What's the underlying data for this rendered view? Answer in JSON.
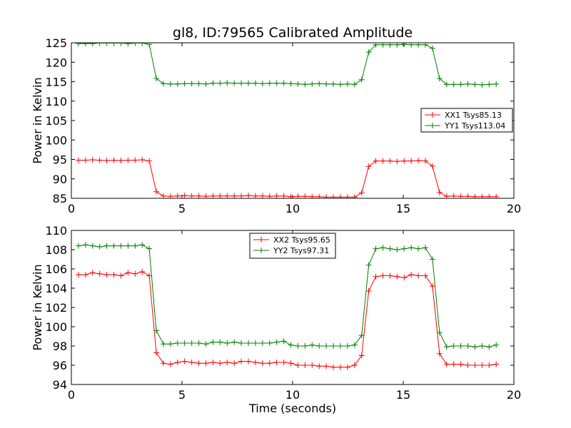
{
  "figure": {
    "title": "gl8, ID:79565 Calibrated Amplitude"
  },
  "chart_data": [
    {
      "type": "line",
      "title": "gl8, ID:79565 Calibrated Amplitude",
      "xlabel": "",
      "ylabel": "Power in Kelvin",
      "xlim": [
        0,
        20
      ],
      "ylim": [
        85,
        125
      ],
      "xticks": [
        "0",
        "5",
        "10",
        "15",
        "20"
      ],
      "yticks": [
        "85",
        "90",
        "95",
        "100",
        "105",
        "110",
        "115",
        "120",
        "125"
      ],
      "legend_position": "center-right",
      "x": [
        0.32,
        0.64,
        0.96,
        1.28,
        1.6,
        1.92,
        2.24,
        2.56,
        2.88,
        3.2,
        3.52,
        3.84,
        4.16,
        4.48,
        4.8,
        5.12,
        5.44,
        5.76,
        6.08,
        6.4,
        6.72,
        7.04,
        7.36,
        7.68,
        8.0,
        8.32,
        8.64,
        8.96,
        9.28,
        9.6,
        9.92,
        10.24,
        10.56,
        10.88,
        11.2,
        11.52,
        11.84,
        12.16,
        12.48,
        12.8,
        13.12,
        13.44,
        13.76,
        14.08,
        14.4,
        14.72,
        15.04,
        15.36,
        15.68,
        16.0,
        16.32,
        16.64,
        16.96,
        17.28,
        17.6,
        17.92,
        18.24,
        18.56,
        18.88,
        19.2
      ],
      "series": [
        {
          "name": "XX1 Tsys85.13",
          "color": "#ff0000",
          "values": [
            94.8,
            94.8,
            94.9,
            94.8,
            94.7,
            94.8,
            94.7,
            94.8,
            94.8,
            94.9,
            94.6,
            86.7,
            85.6,
            85.5,
            85.6,
            85.7,
            85.6,
            85.6,
            85.5,
            85.6,
            85.6,
            85.6,
            85.6,
            85.6,
            85.7,
            85.6,
            85.6,
            85.5,
            85.6,
            85.6,
            85.4,
            85.5,
            85.5,
            85.4,
            85.4,
            85.3,
            85.3,
            85.3,
            85.3,
            85.3,
            86.4,
            93.2,
            94.6,
            94.6,
            94.6,
            94.5,
            94.6,
            94.6,
            94.7,
            94.6,
            93.3,
            86.5,
            85.5,
            85.6,
            85.5,
            85.5,
            85.4,
            85.4,
            85.4,
            85.4
          ]
        },
        {
          "name": "YY1 Tsys113.04",
          "color": "#008000",
          "values": [
            124.8,
            124.8,
            124.8,
            124.9,
            124.9,
            124.9,
            124.9,
            124.8,
            124.9,
            124.9,
            124.6,
            115.8,
            114.5,
            114.4,
            114.4,
            114.5,
            114.5,
            114.5,
            114.4,
            114.6,
            114.6,
            114.7,
            114.6,
            114.6,
            114.6,
            114.6,
            114.5,
            114.6,
            114.6,
            114.6,
            114.5,
            114.4,
            114.3,
            114.4,
            114.5,
            114.4,
            114.4,
            114.3,
            114.4,
            114.3,
            115.5,
            122.6,
            124.5,
            124.5,
            124.5,
            124.5,
            124.6,
            124.5,
            124.5,
            124.5,
            123.6,
            115.8,
            114.3,
            114.3,
            114.3,
            114.4,
            114.3,
            114.2,
            114.3,
            114.4
          ]
        }
      ]
    },
    {
      "type": "line",
      "title": "",
      "xlabel": "Time (seconds)",
      "ylabel": "Power in Kelvin",
      "xlim": [
        0,
        20
      ],
      "ylim": [
        94,
        110
      ],
      "xticks": [
        "0",
        "5",
        "10",
        "15",
        "20"
      ],
      "yticks": [
        "94",
        "96",
        "98",
        "100",
        "102",
        "104",
        "106",
        "108",
        "110"
      ],
      "legend_position": "upper-center",
      "x": [
        0.32,
        0.64,
        0.96,
        1.28,
        1.6,
        1.92,
        2.24,
        2.56,
        2.88,
        3.2,
        3.52,
        3.84,
        4.16,
        4.48,
        4.8,
        5.12,
        5.44,
        5.76,
        6.08,
        6.4,
        6.72,
        7.04,
        7.36,
        7.68,
        8.0,
        8.32,
        8.64,
        8.96,
        9.28,
        9.6,
        9.92,
        10.24,
        10.56,
        10.88,
        11.2,
        11.52,
        11.84,
        12.16,
        12.48,
        12.8,
        13.12,
        13.44,
        13.76,
        14.08,
        14.4,
        14.72,
        15.04,
        15.36,
        15.68,
        16.0,
        16.32,
        16.64,
        16.96,
        17.28,
        17.6,
        17.92,
        18.24,
        18.56,
        18.88,
        19.2
      ],
      "series": [
        {
          "name": "XX2 Tsys95.65",
          "color": "#ff0000",
          "values": [
            105.4,
            105.4,
            105.6,
            105.5,
            105.4,
            105.4,
            105.3,
            105.6,
            105.5,
            105.7,
            105.3,
            97.3,
            96.2,
            96.1,
            96.3,
            96.4,
            96.3,
            96.2,
            96.2,
            96.3,
            96.2,
            96.3,
            96.2,
            96.4,
            96.4,
            96.3,
            96.2,
            96.2,
            96.3,
            96.3,
            96.2,
            96.0,
            96.0,
            96.0,
            95.9,
            95.9,
            95.8,
            95.8,
            95.8,
            96.0,
            97.0,
            103.7,
            105.2,
            105.3,
            105.3,
            105.2,
            105.1,
            105.4,
            105.3,
            105.3,
            104.2,
            97.2,
            96.1,
            96.1,
            96.1,
            96.0,
            96.0,
            96.0,
            96.0,
            96.1
          ]
        },
        {
          "name": "YY2 Tsys97.31",
          "color": "#008000",
          "values": [
            108.4,
            108.5,
            108.4,
            108.3,
            108.4,
            108.4,
            108.4,
            108.4,
            108.4,
            108.5,
            108.1,
            99.6,
            98.2,
            98.2,
            98.3,
            98.3,
            98.3,
            98.3,
            98.2,
            98.4,
            98.4,
            98.3,
            98.4,
            98.3,
            98.3,
            98.3,
            98.3,
            98.3,
            98.4,
            98.5,
            98.1,
            98.0,
            98.0,
            98.1,
            98.0,
            98.0,
            98.0,
            98.0,
            98.0,
            98.1,
            99.1,
            106.4,
            108.1,
            108.2,
            108.1,
            108.0,
            108.1,
            108.2,
            108.1,
            108.2,
            107.0,
            99.4,
            97.9,
            98.0,
            98.0,
            98.0,
            97.9,
            98.0,
            97.9,
            98.1
          ]
        }
      ]
    }
  ]
}
